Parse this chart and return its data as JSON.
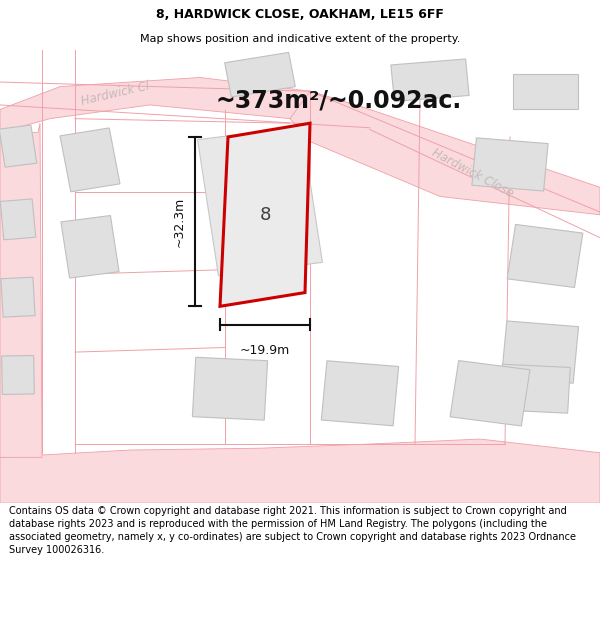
{
  "title_line1": "8, HARDWICK CLOSE, OAKHAM, LE15 6FF",
  "title_line2": "Map shows position and indicative extent of the property.",
  "area_text": "~373m²/~0.092ac.",
  "width_label": "~19.9m",
  "height_label": "~32.3m",
  "property_number": "8",
  "road_label1": "Hardwick Cl",
  "road_label2": "Hardwick Close",
  "footer_text": "Contains OS data © Crown copyright and database right 2021. This information is subject to Crown copyright and database rights 2023 and is reproduced with the permission of HM Land Registry. The polygons (including the associated geometry, namely x, y co-ordinates) are subject to Crown copyright and database rights 2023 Ordnance Survey 100026316.",
  "bg_color": "#ffffff",
  "map_bg": "#f7f7f7",
  "road_fill": "#fadadd",
  "road_edge": "#f0a0a8",
  "bld_fill": "#e0e0e0",
  "bld_edge": "#c8c8c8",
  "prop_fill": "#ebebeb",
  "prop_edge": "#cc0000",
  "road_lbl_color": "#c8b8b8",
  "dim_color": "#111111",
  "title_fs": 9,
  "sub_fs": 8,
  "area_fs": 17,
  "footer_fs": 7
}
